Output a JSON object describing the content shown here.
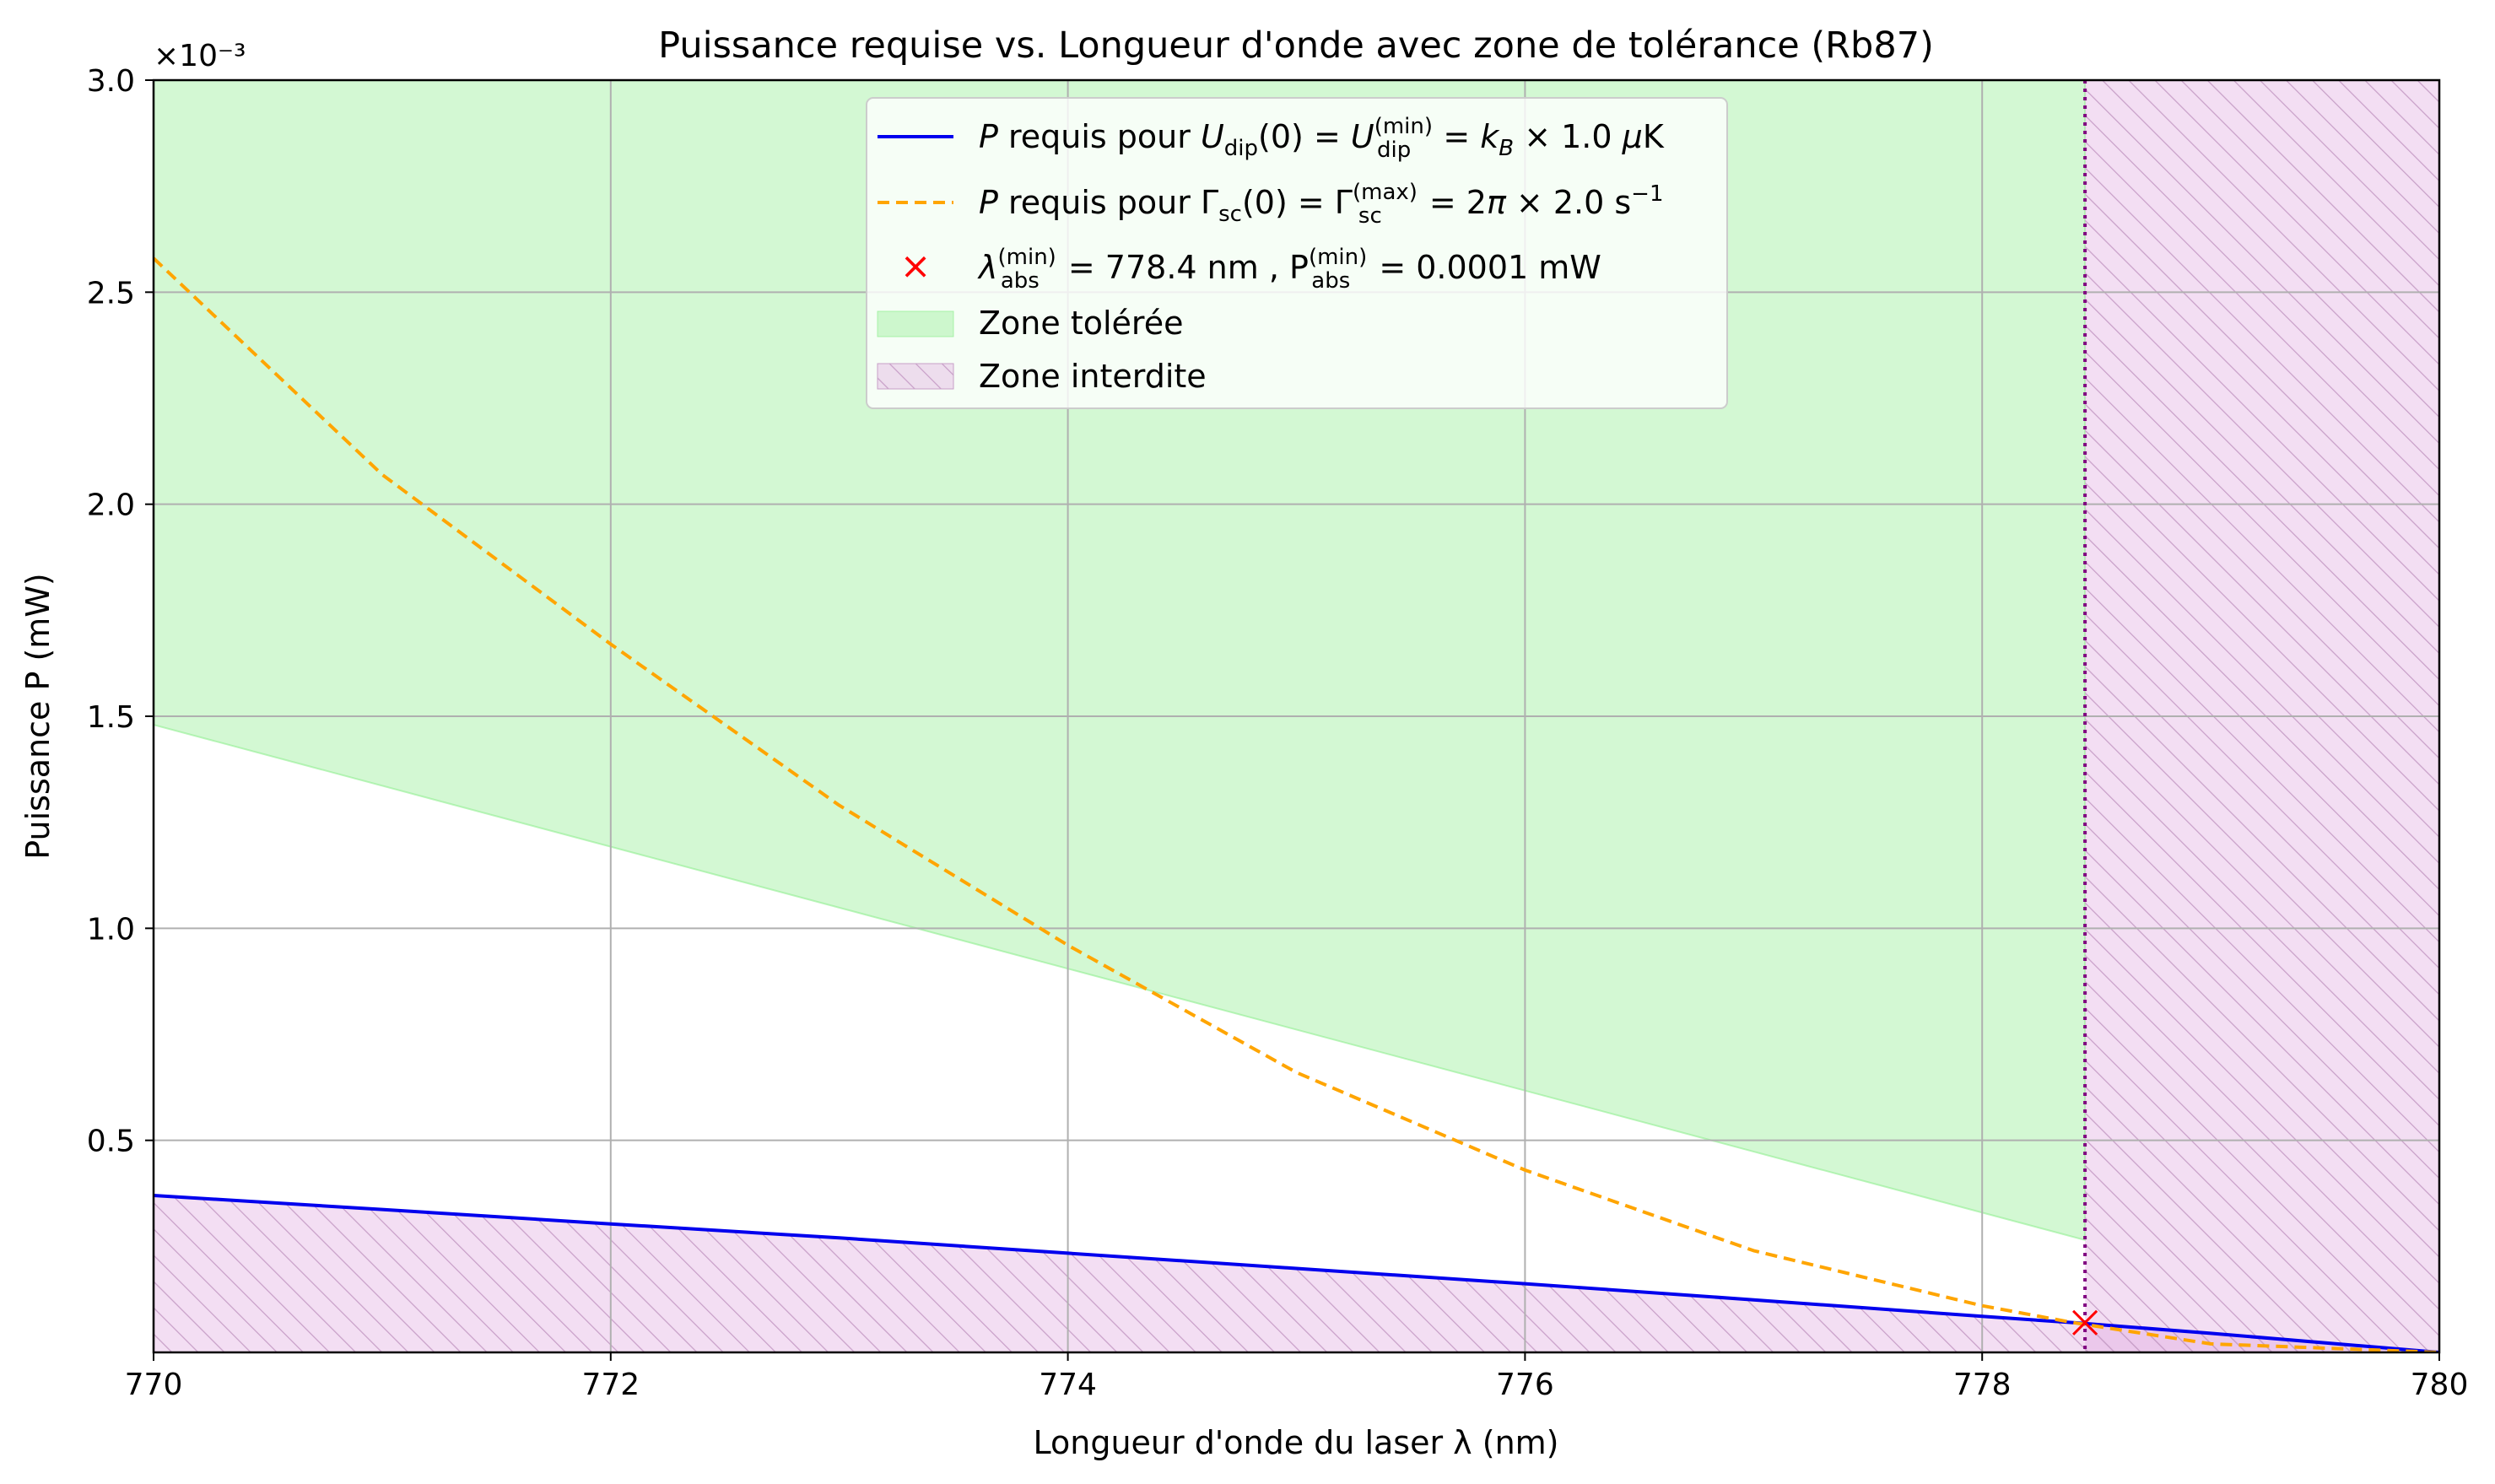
{
  "chart_data": {
    "type": "line",
    "title": "Puissance requise vs. Longueur d'onde avec zone de tolérance (Rb87)",
    "xlabel": "Longueur d'onde du laser λ (nm)",
    "ylabel": "Puissance P (mW)",
    "xlim": [
      770,
      780
    ],
    "ylim": [
      0,
      0.003
    ],
    "y_offset_label": "×10⁻³",
    "grid": true,
    "legend_position": "top-center",
    "x_ticks": [
      770,
      772,
      774,
      776,
      778,
      780
    ],
    "x_tick_labels": [
      "770",
      "772",
      "774",
      "776",
      "778",
      "780"
    ],
    "y_ticks": [
      0.0005,
      0.001,
      0.0015,
      0.002,
      0.0025,
      0.003
    ],
    "y_tick_labels": [
      "0.5",
      "1.0",
      "1.5",
      "2.0",
      "2.5",
      "3.0"
    ],
    "series": [
      {
        "name": "P requis pour U_dip(0) = U_dip^(min) = k_B × 1.0 μK",
        "style": "solid",
        "color": "#0000ee",
        "x": [
          770,
          771,
          772,
          773,
          774,
          775,
          776,
          777,
          778,
          778.4,
          779,
          780
        ],
        "values": [
          0.00037,
          0.000337,
          0.000303,
          0.00027,
          0.000234,
          0.000198,
          0.000162,
          0.000124,
          8.5e-05,
          7e-05,
          4.5e-05,
          0.0
        ]
      },
      {
        "name": "P requis pour Γ_sc(0) = Γ_sc^(max) = 2π × 2.0 s⁻¹",
        "style": "dashed",
        "color": "#ffa500",
        "x": [
          770,
          771,
          772,
          773,
          774,
          775,
          776,
          777,
          778,
          778.4,
          779,
          780
        ],
        "values": [
          0.00258,
          0.00207,
          0.00167,
          0.00129,
          0.00096,
          0.00066,
          0.00043,
          0.00024,
          0.00011,
          7e-05,
          2e-05,
          0.0
        ]
      }
    ],
    "marker": {
      "label_lambda": "λ_abs^(min) = 778.4 nm",
      "label_p": "P_abs^(min) = 0.0001 mW",
      "x": 778.45,
      "y": 7e-05,
      "color": "#ff0000",
      "symbol": "x"
    },
    "tolerated_zone": {
      "label": "Zone tolérée",
      "color": "#90ee90",
      "x": [
        770,
        778.45
      ],
      "lower": [
        0.00148,
        0.000265
      ],
      "upper": [
        0.003,
        0.003
      ]
    },
    "forbidden_zone": {
      "label": "Zone interdite",
      "color": "#dda0dd",
      "x_start": 778.45
    },
    "vertical_line": {
      "x": 778.45,
      "color": "#800080",
      "style": "dotted"
    }
  }
}
